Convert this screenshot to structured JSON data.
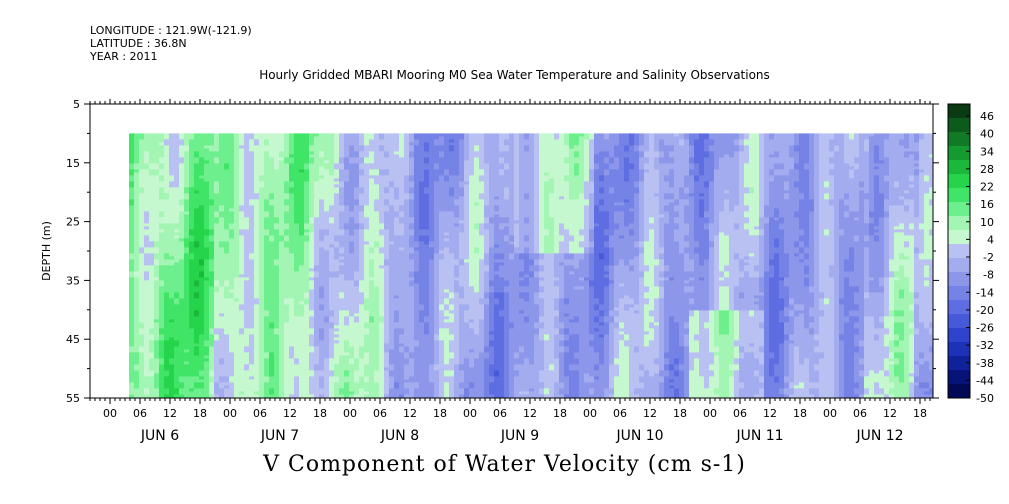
{
  "header": {
    "longitude": "LONGITUDE : 121.9W(-121.9)",
    "latitude": "LATITUDE : 36.8N",
    "year": "YEAR : 2011"
  },
  "chart_data": {
    "type": "heatmap",
    "title": "Hourly Gridded MBARI Mooring M0 Sea Water Temperature and Salinity Observations",
    "variable_label": "V Component of Water Velocity (cm s-1)",
    "ylabel": "DEPTH (m)",
    "ylim": [
      5,
      55
    ],
    "y_inverted": true,
    "y_ticks": [
      5,
      15,
      25,
      35,
      45,
      55
    ],
    "x_hour_labels": [
      "00",
      "06",
      "12",
      "18",
      "00",
      "06",
      "12",
      "18",
      "00",
      "06",
      "12",
      "18",
      "00",
      "06",
      "12",
      "18",
      "00",
      "06",
      "12",
      "18",
      "00",
      "06",
      "12",
      "18",
      "00",
      "06",
      "12",
      "18"
    ],
    "x_day_labels": [
      "JUN  6",
      "JUN  7",
      "JUN  8",
      "JUN  9",
      "JUN 10",
      "JUN 11",
      "JUN 12"
    ],
    "data_depth_range": [
      10,
      55
    ],
    "colorbar": {
      "labels": [
        "46",
        "40",
        "34",
        "28",
        "22",
        "16",
        "10",
        "4",
        "-2",
        "-8",
        "-14",
        "-20",
        "-26",
        "-32",
        "-38",
        "-44",
        "-50"
      ],
      "range": [
        -50,
        52
      ],
      "step": 3,
      "colors": [
        "#0a3b12",
        "#0c5a1c",
        "#107a26",
        "#159a30",
        "#1bb83b",
        "#25d44a",
        "#40e466",
        "#6cef8c",
        "#a2f5b2",
        "#c6f8cf",
        "#b9c0f2",
        "#a3acee",
        "#8d97ea",
        "#7582e6",
        "#5e6de2",
        "#4659d8",
        "#2e44cc",
        "#1d32b6",
        "#10229a",
        "#08137a",
        "#020a55"
      ]
    },
    "day_profiles": [
      {
        "day": "JUN  6",
        "predominant": "positive (green, 8 to 20)"
      },
      {
        "day": "JUN  7",
        "predominant": "positive near-surface, mixed at depth"
      },
      {
        "day": "JUN  8",
        "predominant": "negative (blue, -2 to -14)"
      },
      {
        "day": "JUN  9",
        "predominant": "mixed, mostly negative"
      },
      {
        "day": "JUN 10",
        "predominant": "negative with positive patches"
      },
      {
        "day": "JUN 11",
        "predominant": "mixed"
      },
      {
        "day": "JUN 12",
        "predominant": "mixed, positive near bottom"
      }
    ]
  }
}
